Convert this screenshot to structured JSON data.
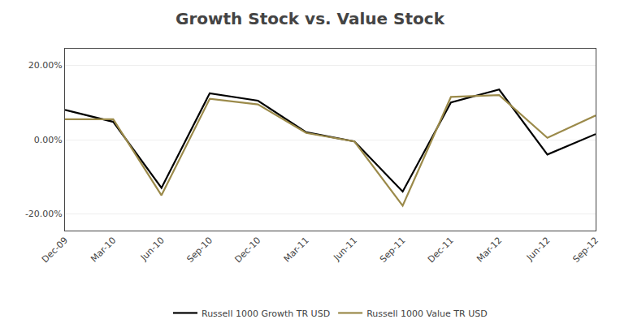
{
  "chart_data": {
    "type": "line",
    "title": "Growth Stock vs. Value Stock",
    "categories": [
      "Dec-09",
      "Mar-10",
      "Jun-10",
      "Sep-10",
      "Dec-10",
      "Mar-11",
      "Jun-11",
      "Sep-11",
      "Dec-11",
      "Mar-12",
      "Jun-12",
      "Sep-12"
    ],
    "series": [
      {
        "name": "Russell 1000 Growth TR USD",
        "color": "#000000",
        "values": [
          0.08,
          0.048,
          -0.13,
          0.125,
          0.105,
          0.02,
          -0.005,
          -0.14,
          0.1,
          0.135,
          -0.04,
          0.015
        ]
      },
      {
        "name": "Russell 1000 Value TR USD",
        "color": "#9b8a4a",
        "values": [
          0.055,
          0.055,
          -0.15,
          0.11,
          0.095,
          0.018,
          -0.005,
          -0.178,
          0.115,
          0.12,
          0.005,
          0.065
        ]
      }
    ],
    "ylim": [
      -0.245,
      0.245
    ],
    "yticks": [
      {
        "value": -0.2,
        "label": "-20.00%"
      },
      {
        "value": 0.0,
        "label": "0.00%"
      },
      {
        "value": 0.2,
        "label": "20.00%"
      }
    ],
    "grid": true,
    "legend": "bottom"
  }
}
